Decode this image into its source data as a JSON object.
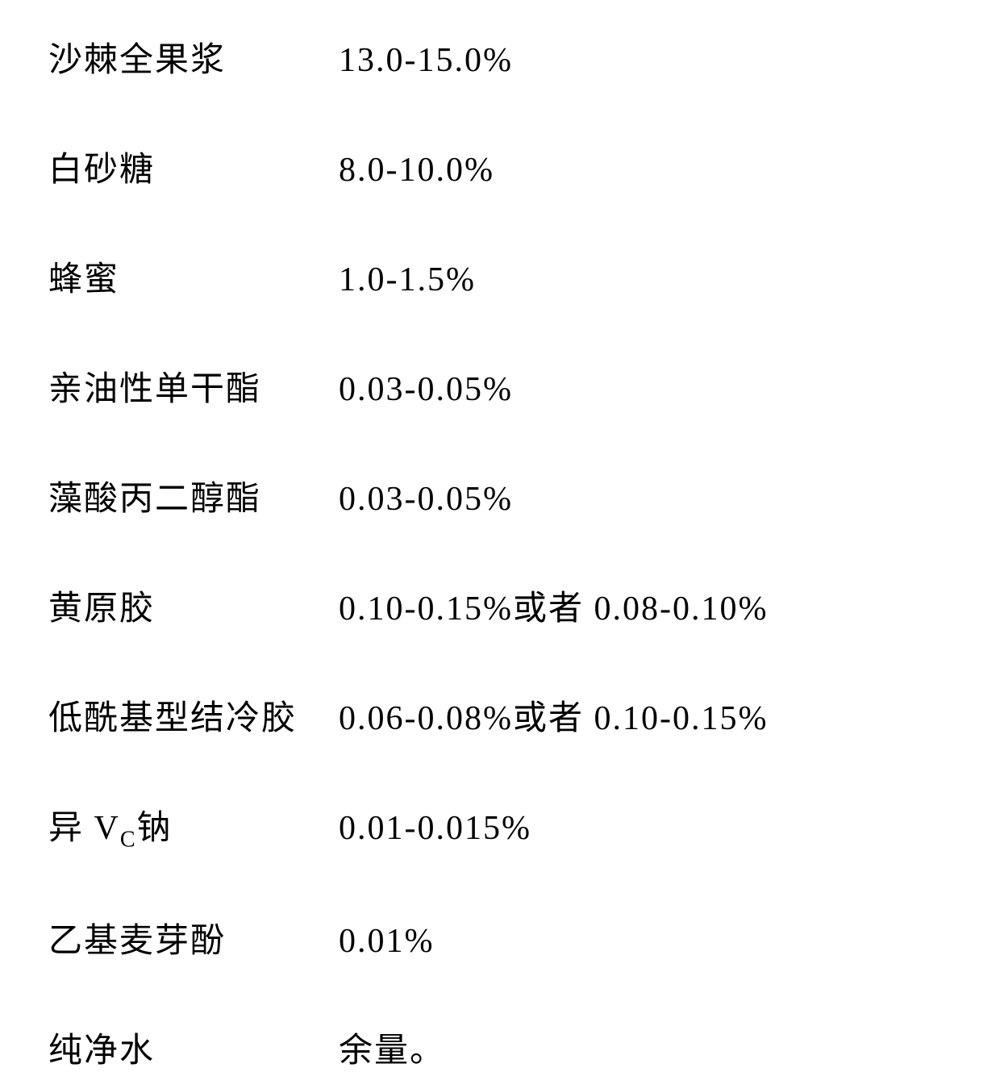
{
  "table": {
    "text_color": "#000000",
    "background_color": "#ffffff",
    "font_family": "SimSun",
    "font_size": 42,
    "row_spacing": 75,
    "name_column_width": 360,
    "rows": [
      {
        "name": "沙棘全果浆",
        "value": "13.0-15.0%"
      },
      {
        "name": "白砂糖",
        "value": "8.0-10.0%"
      },
      {
        "name": "蜂蜜",
        "value": "1.0-1.5%"
      },
      {
        "name": "亲油性单干酯",
        "value": "0.03-0.05%"
      },
      {
        "name": "藻酸丙二醇酯",
        "value": "0.03-0.05%"
      },
      {
        "name": "黄原胶",
        "value": "0.10-0.15%或者 0.08-0.10%"
      },
      {
        "name": "低酰基型结冷胶",
        "value": "0.06-0.08%或者 0.10-0.15%"
      },
      {
        "name_prefix": "异 V",
        "name_sub": "C",
        "name_suffix": "钠",
        "value": "0.01-0.015%",
        "has_subscript": true
      },
      {
        "name": "乙基麦芽酚",
        "value": "0.01%"
      },
      {
        "name": "纯净水",
        "value": "余量。"
      }
    ]
  }
}
